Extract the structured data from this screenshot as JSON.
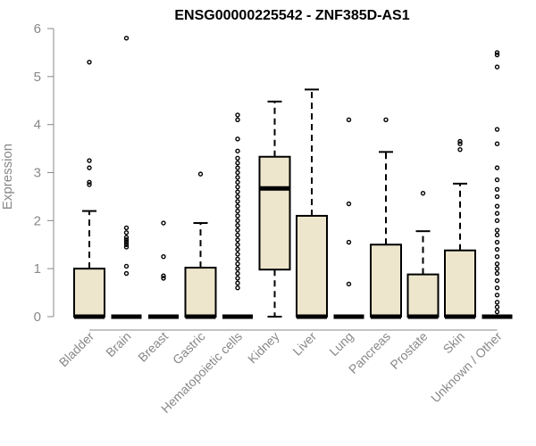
{
  "chart_data": {
    "type": "boxplot",
    "title": "ENSG00000225542 - ZNF385D-AS1",
    "ylabel": "Expression",
    "xlabel": "",
    "ylim": [
      0,
      6
    ],
    "yticks": [
      0,
      1,
      2,
      3,
      4,
      5,
      6
    ],
    "box_fill": "#ede6cc",
    "box_stroke": "#000000",
    "categories": [
      "Bladder",
      "Brain",
      "Breast",
      "Gastric",
      "Hematopoietic cells",
      "Kidney",
      "Liver",
      "Lung",
      "Pancreas",
      "Prostate",
      "Skin",
      "Unknown / Other"
    ],
    "boxes": [
      {
        "q1": 0,
        "median": 0,
        "q3": 1.0,
        "whisker_low": 0,
        "whisker_high": 2.2,
        "outliers": [
          2.75,
          2.8,
          3.1,
          3.25,
          5.3
        ]
      },
      {
        "q1": 0,
        "median": 0,
        "q3": 0,
        "whisker_low": 0,
        "whisker_high": 0,
        "outliers": [
          0.9,
          1.05,
          1.45,
          1.5,
          1.55,
          1.6,
          1.65,
          1.75,
          1.85,
          5.8
        ]
      },
      {
        "q1": 0,
        "median": 0,
        "q3": 0,
        "whisker_low": 0,
        "whisker_high": 0,
        "outliers": [
          0.8,
          0.85,
          1.25,
          1.95
        ]
      },
      {
        "q1": 0,
        "median": 0,
        "q3": 1.02,
        "whisker_low": 0,
        "whisker_high": 1.95,
        "outliers": [
          2.97
        ]
      },
      {
        "q1": 0,
        "median": 0,
        "q3": 0,
        "whisker_low": 0,
        "whisker_high": 0,
        "outliers": [
          0.6,
          0.7,
          0.8,
          0.9,
          1.0,
          1.1,
          1.2,
          1.3,
          1.4,
          1.5,
          1.6,
          1.7,
          1.8,
          1.9,
          2.0,
          2.1,
          2.2,
          2.3,
          2.4,
          2.5,
          2.6,
          2.7,
          2.8,
          2.9,
          3.0,
          3.1,
          3.2,
          3.3,
          3.45,
          3.7,
          4.1,
          4.2
        ]
      },
      {
        "q1": 0.98,
        "median": 2.67,
        "q3": 3.33,
        "whisker_low": 0,
        "whisker_high": 4.48,
        "outliers": []
      },
      {
        "q1": 0,
        "median": 0,
        "q3": 2.1,
        "whisker_low": 0,
        "whisker_high": 4.73,
        "outliers": []
      },
      {
        "q1": 0,
        "median": 0,
        "q3": 0,
        "whisker_low": 0,
        "whisker_high": 0,
        "outliers": [
          0.68,
          1.55,
          2.35,
          4.1
        ]
      },
      {
        "q1": 0,
        "median": 0,
        "q3": 1.5,
        "whisker_low": 0,
        "whisker_high": 3.43,
        "outliers": [
          4.1
        ]
      },
      {
        "q1": 0,
        "median": 0,
        "q3": 0.88,
        "whisker_low": 0,
        "whisker_high": 1.78,
        "outliers": [
          2.57
        ]
      },
      {
        "q1": 0,
        "median": 0,
        "q3": 1.38,
        "whisker_low": 0,
        "whisker_high": 2.77,
        "outliers": [
          3.48,
          3.6,
          3.65
        ]
      },
      {
        "q1": 0,
        "median": 0,
        "q3": 0,
        "whisker_low": 0,
        "whisker_high": 0,
        "outliers": [
          0.1,
          0.2,
          0.3,
          0.45,
          0.6,
          0.75,
          0.9,
          1.0,
          1.1,
          1.25,
          1.4,
          1.55,
          1.7,
          1.8,
          2.0,
          2.15,
          2.3,
          2.5,
          2.65,
          2.85,
          3.1,
          3.6,
          3.9,
          5.2,
          5.45,
          5.5
        ]
      }
    ]
  }
}
